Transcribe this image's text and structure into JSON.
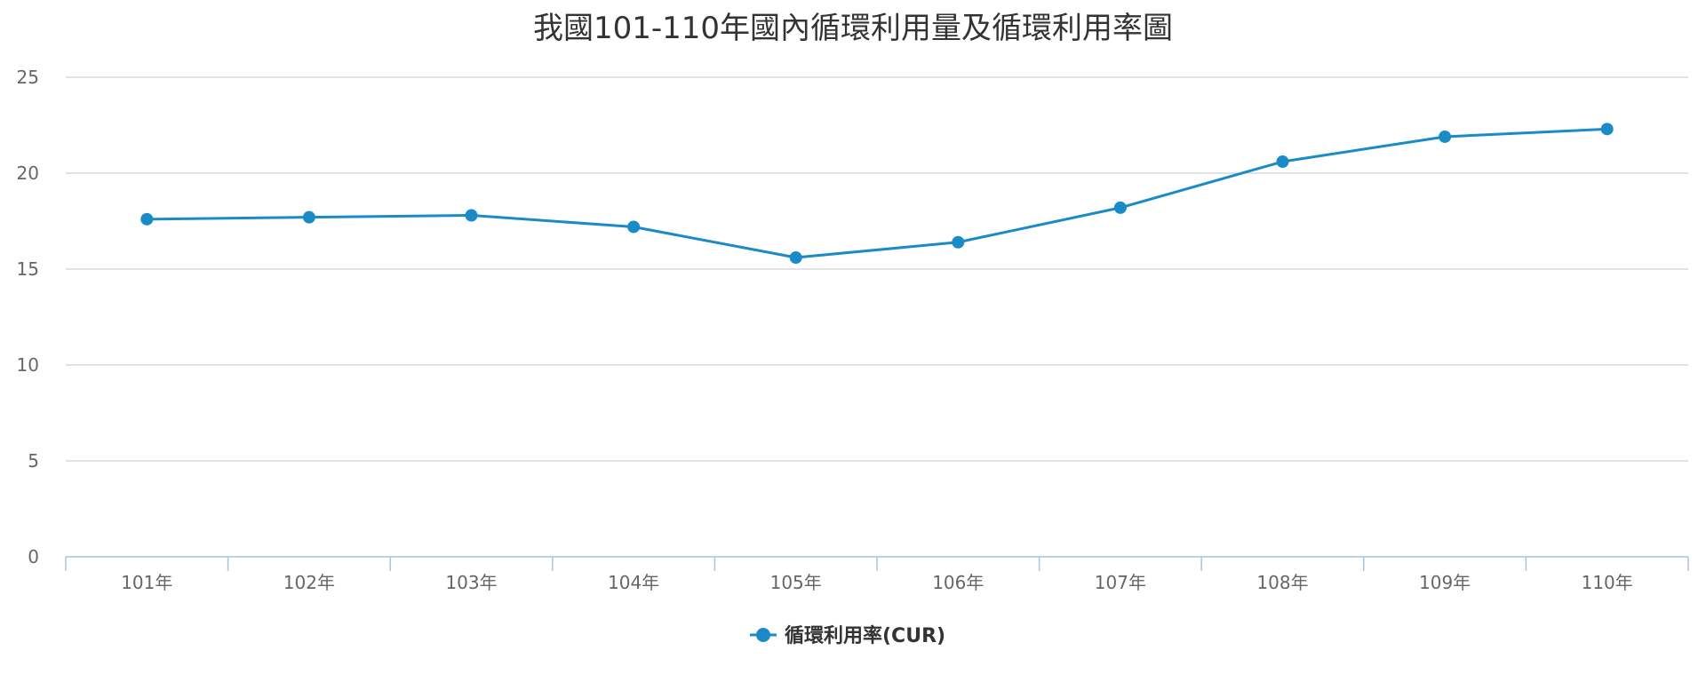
{
  "chart_data": {
    "type": "line",
    "title": "我國101-110年國內循環利用量及循環利用率圖",
    "categories": [
      "101年",
      "102年",
      "103年",
      "104年",
      "105年",
      "106年",
      "107年",
      "108年",
      "109年",
      "110年"
    ],
    "series": [
      {
        "name": "循環利用率(CUR)",
        "values": [
          17.6,
          17.7,
          17.8,
          17.2,
          15.6,
          16.4,
          18.2,
          20.6,
          21.9,
          22.3
        ]
      }
    ],
    "yticks": [
      0,
      5,
      10,
      15,
      20,
      25
    ],
    "ylim": [
      0,
      25
    ],
    "grid": true,
    "legend_position": "bottom-center",
    "colors": {
      "series": "#1a8bc6",
      "grid": "#d8d8d8",
      "axis": "#a9c4dd",
      "title": "#333333",
      "tick": "#666666"
    }
  }
}
